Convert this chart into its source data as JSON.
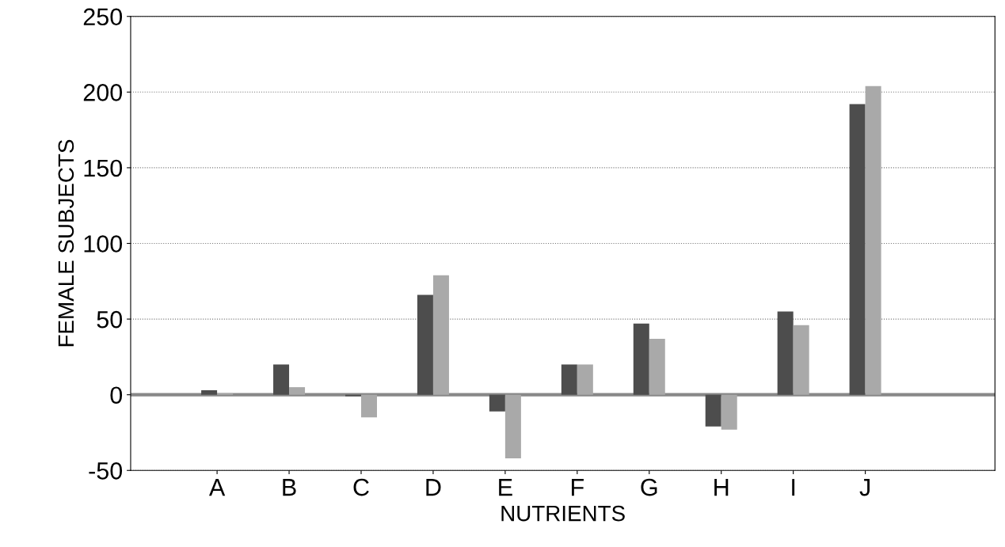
{
  "chart_data": {
    "type": "bar",
    "xlabel": "NUTRIENTS",
    "ylabel": "FEMALE SUBJECTS",
    "categories": [
      "A",
      "B",
      "C",
      "D",
      "E",
      "F",
      "G",
      "H",
      "I",
      "J"
    ],
    "series": [
      {
        "color": "#4d4d4d",
        "values": [
          3,
          20,
          -1,
          66,
          -11,
          20,
          47,
          -21,
          55,
          192
        ]
      },
      {
        "color": "#a9a9a9",
        "values": [
          1,
          5,
          -15,
          79,
          -42,
          20,
          37,
          -23,
          46,
          204
        ]
      }
    ],
    "ylim": [
      -50,
      250
    ],
    "yticks": [
      -50,
      0,
      50,
      100,
      150,
      200,
      250
    ],
    "grid": "y",
    "ref_lines": [
      {
        "axis": "y",
        "value": 0,
        "color": "#888888"
      }
    ]
  }
}
